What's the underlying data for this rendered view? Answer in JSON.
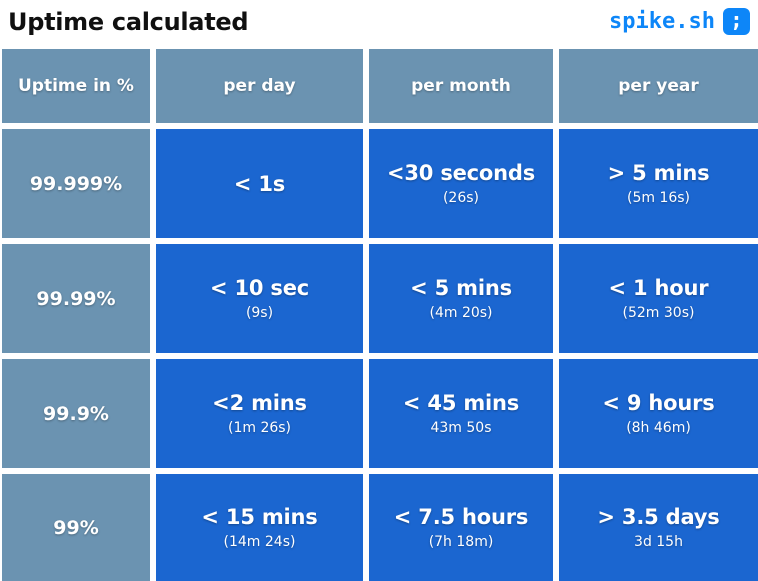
{
  "header": {
    "title": "Uptime calculated",
    "brand": {
      "name": "spike.sh",
      "icon_glyph": ";"
    }
  },
  "colors": {
    "header_cell_bg": "#6b93b1",
    "data_cell_bg": "#1b66d0",
    "brand_blue": "#0d86f8",
    "title_text": "#101010",
    "cell_text": "#ffffff",
    "page_bg": "#ffffff"
  },
  "table": {
    "columns": [
      "Uptime in %",
      "per day",
      "per month",
      "per year"
    ],
    "rows": [
      {
        "uptime": "99.999%",
        "cells": [
          {
            "main": "< 1s",
            "sub": ""
          },
          {
            "main": "<30 seconds",
            "sub": "(26s)"
          },
          {
            "main": "> 5 mins",
            "sub": "(5m 16s)"
          }
        ]
      },
      {
        "uptime": "99.99%",
        "cells": [
          {
            "main": "< 10 sec",
            "sub": "(9s)"
          },
          {
            "main": "< 5 mins",
            "sub": "(4m 20s)"
          },
          {
            "main": "< 1 hour",
            "sub": "(52m 30s)"
          }
        ]
      },
      {
        "uptime": "99.9%",
        "cells": [
          {
            "main": "<2 mins",
            "sub": "(1m 26s)"
          },
          {
            "main": "< 45 mins",
            "sub": "43m 50s"
          },
          {
            "main": "< 9 hours",
            "sub": "(8h 46m)"
          }
        ]
      },
      {
        "uptime": "99%",
        "cells": [
          {
            "main": "< 15 mins",
            "sub": "(14m 24s)"
          },
          {
            "main": "< 7.5 hours",
            "sub": "(7h 18m)"
          },
          {
            "main": "> 3.5 days",
            "sub": "3d 15h"
          }
        ]
      }
    ]
  },
  "chart_data": {
    "type": "table",
    "title": "Uptime calculated",
    "columns": [
      "Uptime in %",
      "per day",
      "per month",
      "per year"
    ],
    "rows": [
      [
        "99.999%",
        "< 1s",
        "<30 seconds (26s)",
        "> 5 mins (5m 16s)"
      ],
      [
        "99.99%",
        "< 10 sec (9s)",
        "< 5 mins (4m 20s)",
        "< 1 hour (52m 30s)"
      ],
      [
        "99.9%",
        "<2 mins (1m 26s)",
        "< 45 mins 43m 50s",
        "< 9 hours (8h 46m)"
      ],
      [
        "99%",
        "< 15 mins (14m 24s)",
        "< 7.5 hours (7h 18m)",
        "> 3.5 days 3d 15h"
      ]
    ]
  }
}
